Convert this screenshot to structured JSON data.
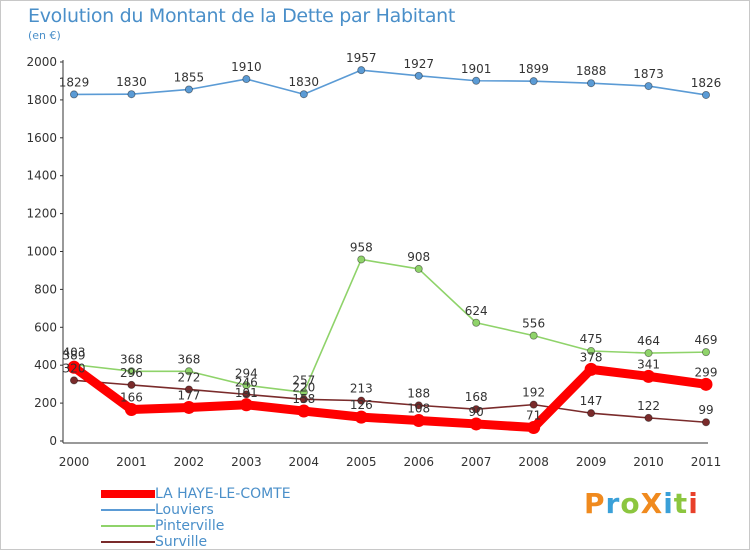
{
  "title": "Evolution du Montant de la Dette par Habitant",
  "unit": "(en €)",
  "brand": {
    "text": "ProXiti",
    "colors": [
      "#f08a1e",
      "#3aa0d8",
      "#8cc63f",
      "#f08a1e",
      "#3aa0d8",
      "#8cc63f",
      "#e8402a"
    ]
  },
  "chart_data": {
    "type": "line",
    "x": [
      "2000",
      "2001",
      "2002",
      "2003",
      "2004",
      "2005",
      "2006",
      "2007",
      "2008",
      "2009",
      "2010",
      "2011"
    ],
    "ylim": [
      0,
      2000
    ],
    "yticks": [
      0,
      200,
      400,
      600,
      800,
      1000,
      1200,
      1400,
      1600,
      1800,
      2000
    ],
    "grid": false,
    "legend_position": "bottom-left",
    "series": [
      {
        "name": "LA HAYE-LE-COMTE",
        "color": "#ff0000",
        "emphasis": true,
        "values": [
          389,
          166,
          177,
          191,
          158,
          126,
          108,
          90,
          71,
          378,
          341,
          299
        ],
        "labels": [
          "389",
          "166",
          "177",
          "191",
          "158",
          "126",
          "108",
          "90",
          "71",
          "378",
          "341",
          "299"
        ]
      },
      {
        "name": "Louviers",
        "color": "#5b9bd5",
        "emphasis": false,
        "values": [
          1829,
          1830,
          1855,
          1910,
          1830,
          1957,
          1927,
          1901,
          1899,
          1888,
          1873,
          1826
        ],
        "labels": [
          "1829",
          "1830",
          "1855",
          "1910",
          "1830",
          "1957",
          "1927",
          "1901",
          "1899",
          "1888",
          "1873",
          "1826"
        ]
      },
      {
        "name": "Pinterville",
        "color": "#8fd36a",
        "emphasis": false,
        "values": [
          403,
          368,
          368,
          294,
          257,
          958,
          908,
          624,
          556,
          475,
          464,
          469
        ],
        "labels": [
          "403",
          "368",
          "368",
          "294",
          "257",
          "958",
          "908",
          "624",
          "556",
          "475",
          "464",
          "469"
        ]
      },
      {
        "name": "Surville",
        "color": "#7a2b2b",
        "emphasis": false,
        "values": [
          320,
          296,
          272,
          246,
          220,
          213,
          188,
          168,
          192,
          147,
          122,
          99
        ],
        "labels": [
          "320",
          "296",
          "272",
          "246",
          "220",
          "213",
          "188",
          "168",
          "192",
          "147",
          "122",
          "99"
        ]
      }
    ]
  }
}
